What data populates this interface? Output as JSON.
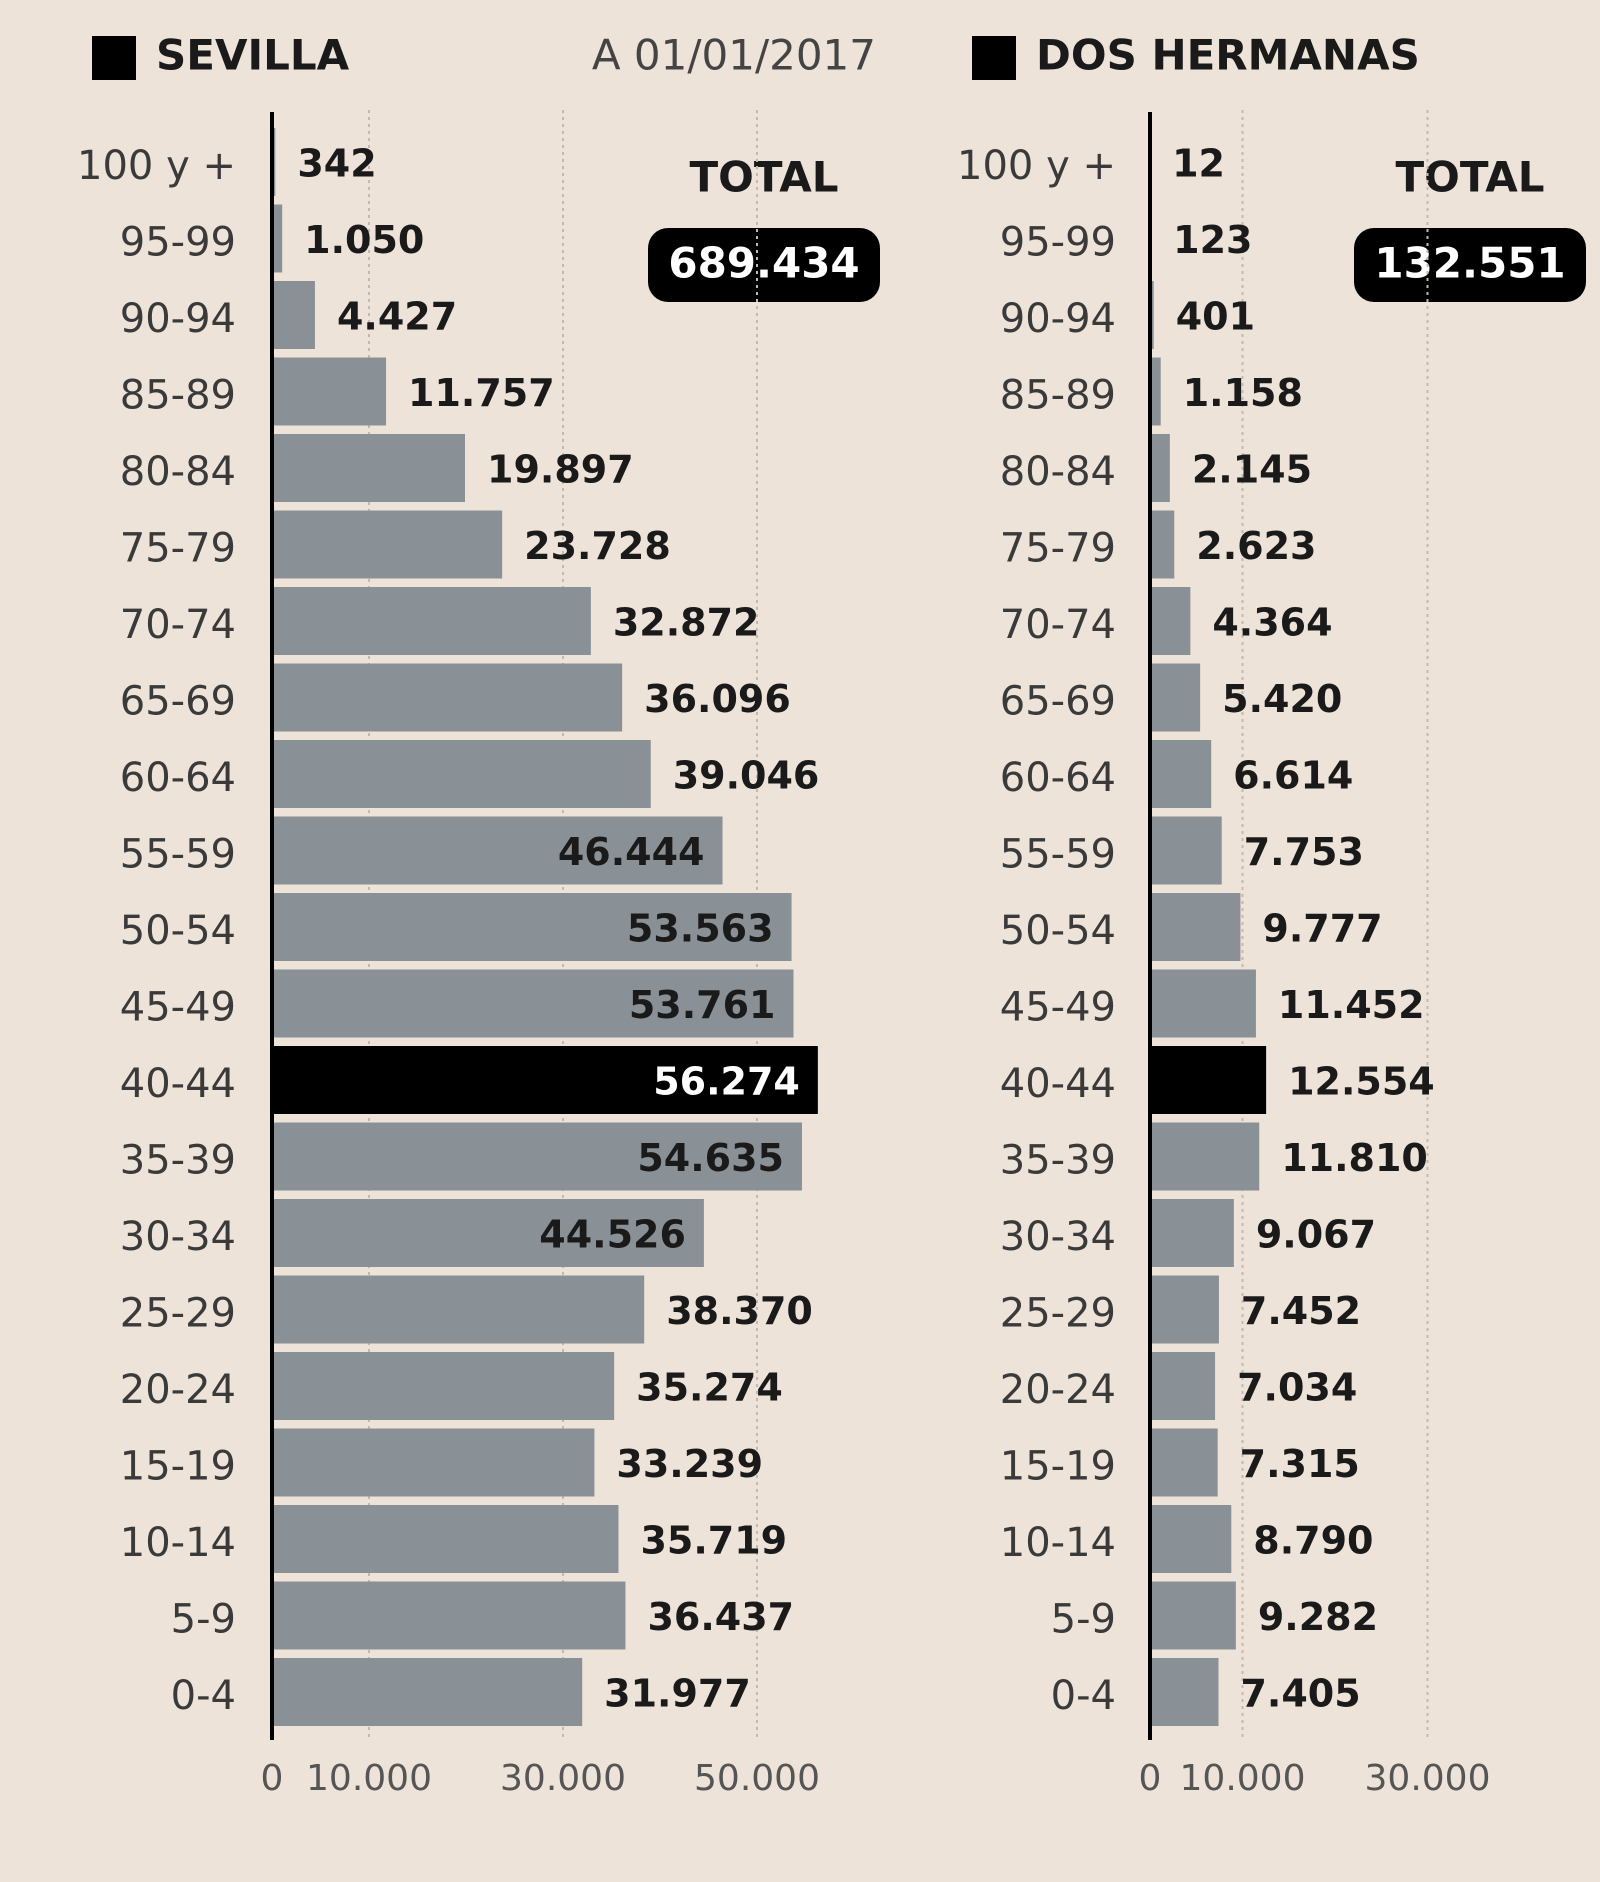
{
  "chart_data": [
    {
      "type": "bar",
      "orientation": "horizontal",
      "title": "SEVILLA",
      "subtitle": "A 01/01/2017",
      "total_title": "TOTAL",
      "total": "689.434",
      "categories": [
        "100 y +",
        "95-99",
        "90-94",
        "85-89",
        "80-84",
        "75-79",
        "70-74",
        "65-69",
        "60-64",
        "55-59",
        "50-54",
        "45-49",
        "40-44",
        "35-39",
        "30-34",
        "25-29",
        "20-24",
        "15-19",
        "10-14",
        "5-9",
        "0-4"
      ],
      "values": [
        342,
        1050,
        4427,
        11757,
        19897,
        23728,
        32872,
        36096,
        39046,
        46444,
        53563,
        53761,
        56274,
        54635,
        44526,
        38370,
        35274,
        33239,
        35719,
        36437,
        31977
      ],
      "value_labels": [
        "342",
        "1.050",
        "4.427",
        "11.757",
        "19.897",
        "23.728",
        "32.872",
        "36.096",
        "39.046",
        "46.444",
        "53.563",
        "53.761",
        "56.274",
        "54.635",
        "44.526",
        "38.370",
        "35.274",
        "33.239",
        "35.719",
        "36.437",
        "31.977"
      ],
      "colors": [
        "#8a9196",
        "#8a9196",
        "#8a9196",
        "#8a9196",
        "#8a9196",
        "#8a9196",
        "#8a9196",
        "#8a9196",
        "#8a9196",
        "#8a9196",
        "#8a9196",
        "#8a9196",
        "#000000",
        "#8a9196",
        "#8a9196",
        "#8a9196",
        "#8a9196",
        "#8a9196",
        "#8a9196",
        "#8a9196",
        "#8a9196"
      ],
      "xlim": [
        0,
        60000
      ],
      "xticks": [
        0,
        {
          "value": 10000,
          "label": "10.000"
        },
        {
          "value": 30000,
          "label": "30.000"
        },
        {
          "value": 50000,
          "label": "50.000"
        }
      ],
      "grid": true
    },
    {
      "type": "bar",
      "orientation": "horizontal",
      "title": "DOS HERMANAS",
      "total_title": "TOTAL",
      "total": "132.551",
      "categories": [
        "100 y +",
        "95-99",
        "90-94",
        "85-89",
        "80-84",
        "75-79",
        "70-74",
        "65-69",
        "60-64",
        "55-59",
        "50-54",
        "45-49",
        "40-44",
        "35-39",
        "30-34",
        "25-29",
        "20-24",
        "15-19",
        "10-14",
        "5-9",
        "0-4"
      ],
      "values": [
        12,
        123,
        401,
        1158,
        2145,
        2623,
        4364,
        5420,
        6614,
        7753,
        9777,
        11452,
        12554,
        11810,
        9067,
        7452,
        7034,
        7315,
        8790,
        9282,
        7405
      ],
      "value_labels": [
        "12",
        "123",
        "401",
        "1.158",
        "2.145",
        "2.623",
        "4.364",
        "5.420",
        "6.614",
        "7.753",
        "9.777",
        "11.452",
        "12.554",
        "11.810",
        "9.067",
        "7.452",
        "7.034",
        "7.315",
        "8.790",
        "9.282",
        "7.405"
      ],
      "colors": [
        "#8a9196",
        "#8a9196",
        "#8a9196",
        "#8a9196",
        "#8a9196",
        "#8a9196",
        "#8a9196",
        "#8a9196",
        "#8a9196",
        "#8a9196",
        "#8a9196",
        "#8a9196",
        "#000000",
        "#8a9196",
        "#8a9196",
        "#8a9196",
        "#8a9196",
        "#8a9196",
        "#8a9196",
        "#8a9196",
        "#8a9196"
      ],
      "xlim": [
        0,
        40000
      ],
      "xticks": [
        0,
        {
          "value": 10000,
          "label": "10.000"
        },
        {
          "value": 30000,
          "label": "30.000"
        }
      ],
      "grid": true
    }
  ]
}
